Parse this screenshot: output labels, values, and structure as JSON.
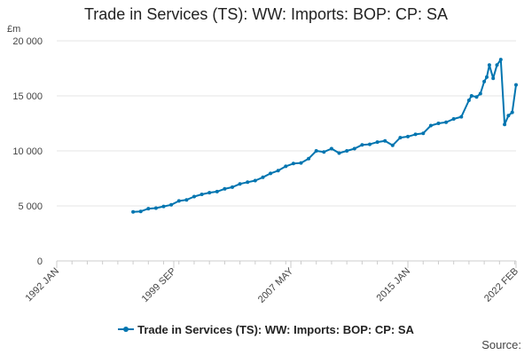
{
  "title": "Trade in Services (TS): WW: Imports: BOP: CP: SA",
  "unit_label": "£m",
  "source_label": "Source:",
  "colors": {
    "series": "#0075b0",
    "grid": "#e6e6e6",
    "axis": "#cccccc",
    "text": "#444444"
  },
  "chart_data": {
    "type": "line",
    "title": "Trade in Services (TS): WW: Imports: BOP: CP: SA",
    "xlabel": "",
    "ylabel": "£m",
    "ylim": [
      0,
      20000
    ],
    "yticks": [
      0,
      5000,
      10000,
      15000,
      20000
    ],
    "ytick_labels": [
      "0",
      "5 000",
      "10 000",
      "15 000",
      "20 000"
    ],
    "x_range": [
      "1992 JAN",
      "2022 FEB"
    ],
    "xtick_labels": [
      "1992 JAN",
      "1999 SEP",
      "2007 MAY",
      "2015 JAN",
      "2022 FEB"
    ],
    "grid": true,
    "legend": "bottom",
    "series": [
      {
        "name": "Trade in Services (TS): WW: Imports: BOP: CP: SA",
        "x": [
          "1997 JAN",
          "1997 JUL",
          "1998 JAN",
          "1998 JUL",
          "1999 JAN",
          "1999 JUL",
          "2000 JAN",
          "2000 JUL",
          "2001 JAN",
          "2001 JUL",
          "2002 JAN",
          "2002 JUL",
          "2003 JAN",
          "2003 JUL",
          "2004 JAN",
          "2004 JUL",
          "2005 JAN",
          "2005 JUL",
          "2006 JAN",
          "2006 JUL",
          "2007 JAN",
          "2007 JUL",
          "2008 JAN",
          "2008 JUL",
          "2009 JAN",
          "2009 JUL",
          "2010 JAN",
          "2010 JUL",
          "2011 JAN",
          "2011 JUL",
          "2012 JAN",
          "2012 JUL",
          "2013 JAN",
          "2013 JUL",
          "2014 JAN",
          "2014 JUL",
          "2015 JAN",
          "2015 JUL",
          "2016 JAN",
          "2016 JUL",
          "2017 JAN",
          "2017 JUL",
          "2018 JAN",
          "2018 JUL",
          "2019 JAN",
          "2019 MAR",
          "2019 JUL",
          "2019 OCT",
          "2020 JAN",
          "2020 MAR",
          "2020 MAY",
          "2020 AUG",
          "2020 NOV",
          "2021 FEB",
          "2021 MAY",
          "2021 AUG",
          "2021 NOV",
          "2022 FEB"
        ],
        "values": [
          4450,
          4500,
          4750,
          4800,
          4950,
          5100,
          5450,
          5550,
          5850,
          6050,
          6200,
          6300,
          6550,
          6700,
          7000,
          7150,
          7300,
          7600,
          7950,
          8200,
          8600,
          8850,
          8900,
          9300,
          10000,
          9900,
          10200,
          9800,
          10000,
          10200,
          10550,
          10600,
          10800,
          10900,
          10500,
          11200,
          11300,
          11500,
          11600,
          12300,
          12500,
          12600,
          12900,
          13100,
          14600,
          15000,
          14900,
          15200,
          16300,
          16700,
          17800,
          16600,
          17800,
          18300,
          12400,
          13200,
          13500,
          16000
        ]
      }
    ]
  }
}
